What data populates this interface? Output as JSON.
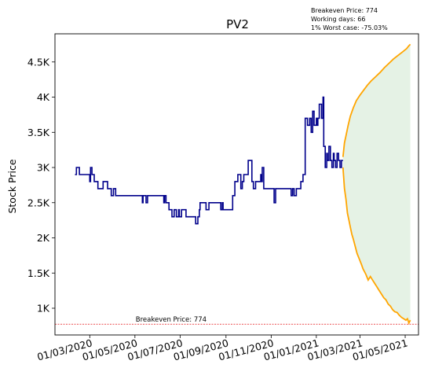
{
  "info": {
    "breakeven_text": "Breakeven Price: 774",
    "working_days_text": "Working days: 66",
    "worst_case_text": "1% Worst case: -75.03%"
  },
  "chart_data": {
    "type": "line",
    "title": "PV2",
    "xlabel": "",
    "ylabel": "Stock Price",
    "x_axis": "date",
    "xlim": [
      "2020-01-14",
      "2021-05-19"
    ],
    "ylim": [
      620,
      4900
    ],
    "y_ticks": [
      1000,
      1500,
      2000,
      2500,
      3000,
      3500,
      4000,
      4500
    ],
    "y_tick_labels": [
      "1K",
      "1.5K",
      "2K",
      "2.5K",
      "3K",
      "3.5K",
      "4K",
      "4.5K"
    ],
    "x_ticks": [
      "2020-03-01",
      "2020-05-01",
      "2020-07-01",
      "2020-09-01",
      "2020-11-01",
      "2021-01-01",
      "2021-03-01",
      "2021-05-01"
    ],
    "x_tick_labels": [
      "01/03/2020",
      "01/05/2020",
      "01/07/2020",
      "01/09/2020",
      "01/11/2020",
      "01/01/2021",
      "01/03/2021",
      "01/05/2021"
    ],
    "grid": false,
    "colors": {
      "history": "#00008b",
      "forecast": "#ffa500",
      "band": "#e5f2e5",
      "breakeven": "#e41a1c"
    },
    "history": {
      "x": [
        "2020-02-10",
        "2020-02-12",
        "2020-02-14",
        "2020-02-16",
        "2020-02-18",
        "2020-02-22",
        "2020-02-26",
        "2020-02-28",
        "2020-03-01",
        "2020-03-02",
        "2020-03-04",
        "2020-03-07",
        "2020-03-10",
        "2020-03-12",
        "2020-03-15",
        "2020-03-19",
        "2020-03-22",
        "2020-03-25",
        "2020-03-28",
        "2020-03-30",
        "2020-04-02",
        "2020-04-05",
        "2020-04-09",
        "2020-04-15",
        "2020-04-22",
        "2020-04-29",
        "2020-05-06",
        "2020-05-10",
        "2020-05-11",
        "2020-05-12",
        "2020-05-15",
        "2020-05-16",
        "2020-05-18",
        "2020-05-22",
        "2020-05-29",
        "2020-06-05",
        "2020-06-08",
        "2020-06-09",
        "2020-06-10",
        "2020-06-12",
        "2020-06-13",
        "2020-06-16",
        "2020-06-18",
        "2020-06-20",
        "2020-06-23",
        "2020-06-26",
        "2020-06-29",
        "2020-06-30",
        "2020-07-03",
        "2020-07-05",
        "2020-07-09",
        "2020-07-12",
        "2020-07-18",
        "2020-07-22",
        "2020-07-25",
        "2020-07-27",
        "2020-07-28",
        "2020-07-29",
        "2020-08-01",
        "2020-08-05",
        "2020-08-08",
        "2020-08-09",
        "2020-08-12",
        "2020-08-15",
        "2020-08-19",
        "2020-08-22",
        "2020-08-25",
        "2020-08-27",
        "2020-08-28",
        "2020-08-30",
        "2020-09-02",
        "2020-09-06",
        "2020-09-10",
        "2020-09-13",
        "2020-09-17",
        "2020-09-21",
        "2020-09-23",
        "2020-09-25",
        "2020-09-27",
        "2020-09-29",
        "2020-10-01",
        "2020-10-03",
        "2020-10-06",
        "2020-10-08",
        "2020-10-10",
        "2020-10-11",
        "2020-10-12",
        "2020-10-13",
        "2020-10-16",
        "2020-10-18",
        "2020-10-19",
        "2020-10-20",
        "2020-10-22",
        "2020-10-25",
        "2020-10-29",
        "2020-11-02",
        "2020-11-05",
        "2020-11-06",
        "2020-11-07",
        "2020-11-10",
        "2020-11-15",
        "2020-11-20",
        "2020-11-25",
        "2020-11-27",
        "2020-11-28",
        "2020-11-30",
        "2020-12-02",
        "2020-12-05",
        "2020-12-08",
        "2020-12-11",
        "2020-12-14",
        "2020-12-17",
        "2020-12-20",
        "2020-12-23",
        "2020-12-25",
        "2020-12-27",
        "2020-12-29",
        "2021-01-01",
        "2021-01-02",
        "2021-01-03",
        "2021-01-05",
        "2021-01-06",
        "2021-01-08",
        "2021-01-10",
        "2021-01-11",
        "2021-01-13",
        "2021-01-15",
        "2021-01-16",
        "2021-01-18",
        "2021-01-20",
        "2021-01-22",
        "2021-01-24",
        "2021-01-25",
        "2021-01-27",
        "2021-01-29",
        "2021-01-31",
        "2021-02-02",
        "2021-02-04",
        "2021-02-06"
      ],
      "y": [
        2900,
        3000,
        3000,
        2900,
        2900,
        2900,
        2900,
        2900,
        2800,
        3000,
        2900,
        2800,
        2800,
        2700,
        2700,
        2800,
        2800,
        2700,
        2700,
        2600,
        2700,
        2600,
        2600,
        2600,
        2600,
        2600,
        2600,
        2600,
        2500,
        2600,
        2600,
        2500,
        2600,
        2600,
        2600,
        2600,
        2600,
        2500,
        2600,
        2500,
        2500,
        2400,
        2400,
        2300,
        2400,
        2300,
        2400,
        2300,
        2400,
        2400,
        2300,
        2300,
        2300,
        2200,
        2300,
        2400,
        2500,
        2500,
        2500,
        2400,
        2400,
        2500,
        2500,
        2500,
        2500,
        2500,
        2400,
        2500,
        2400,
        2400,
        2400,
        2400,
        2600,
        2800,
        2900,
        2700,
        2800,
        2900,
        2900,
        2900,
        3100,
        3100,
        2800,
        2700,
        2700,
        2800,
        2800,
        2800,
        2800,
        2900,
        2800,
        3000,
        2700,
        2700,
        2700,
        2700,
        2500,
        2500,
        2700,
        2700,
        2700,
        2700,
        2700,
        2700,
        2600,
        2700,
        2600,
        2700,
        2700,
        2800,
        2900,
        3700,
        3600,
        3700,
        3500,
        3800,
        3600,
        3700,
        3600,
        3700,
        3900,
        3900,
        3700,
        4000,
        3300,
        3000,
        3200,
        3100,
        3300,
        3100,
        3000,
        3200,
        3100,
        3000,
        3200,
        3100,
        3000,
        3100,
        3100
      ],
      "note": "daily close prices"
    },
    "forecast_upper": {
      "x": [
        "2021-02-06",
        "2021-02-08",
        "2021-02-10",
        "2021-02-13",
        "2021-02-16",
        "2021-02-20",
        "2021-02-24",
        "2021-03-01",
        "2021-03-06",
        "2021-03-11",
        "2021-03-16",
        "2021-03-22",
        "2021-03-28",
        "2021-04-03",
        "2021-04-09",
        "2021-04-15",
        "2021-04-21",
        "2021-04-27",
        "2021-05-03",
        "2021-05-06",
        "2021-05-08"
      ],
      "y": [
        3150,
        3350,
        3450,
        3600,
        3730,
        3850,
        3950,
        4030,
        4100,
        4170,
        4230,
        4290,
        4350,
        4420,
        4480,
        4540,
        4590,
        4640,
        4690,
        4730,
        4750
      ]
    },
    "forecast_lower": {
      "x": [
        "2021-02-06",
        "2021-02-08",
        "2021-02-10",
        "2021-02-12",
        "2021-02-14",
        "2021-02-16",
        "2021-02-18",
        "2021-02-20",
        "2021-02-22",
        "2021-02-25",
        "2021-02-28",
        "2021-03-03",
        "2021-03-05",
        "2021-03-07",
        "2021-03-09",
        "2021-03-12",
        "2021-03-15",
        "2021-03-18",
        "2021-03-21",
        "2021-03-24",
        "2021-03-27",
        "2021-03-30",
        "2021-04-02",
        "2021-04-05",
        "2021-04-08",
        "2021-04-11",
        "2021-04-14",
        "2021-04-17",
        "2021-04-20",
        "2021-04-23",
        "2021-04-26",
        "2021-04-29",
        "2021-05-02",
        "2021-05-04",
        "2021-05-06",
        "2021-05-08"
      ],
      "y": [
        3000,
        2700,
        2550,
        2350,
        2250,
        2150,
        2050,
        1980,
        1900,
        1780,
        1700,
        1620,
        1560,
        1520,
        1480,
        1400,
        1450,
        1400,
        1350,
        1300,
        1250,
        1200,
        1150,
        1120,
        1060,
        1030,
        980,
        950,
        940,
        900,
        870,
        850,
        830,
        850,
        790,
        830
      ]
    },
    "breakeven": {
      "value": 774,
      "label": "Breakeven Price: 774"
    }
  }
}
